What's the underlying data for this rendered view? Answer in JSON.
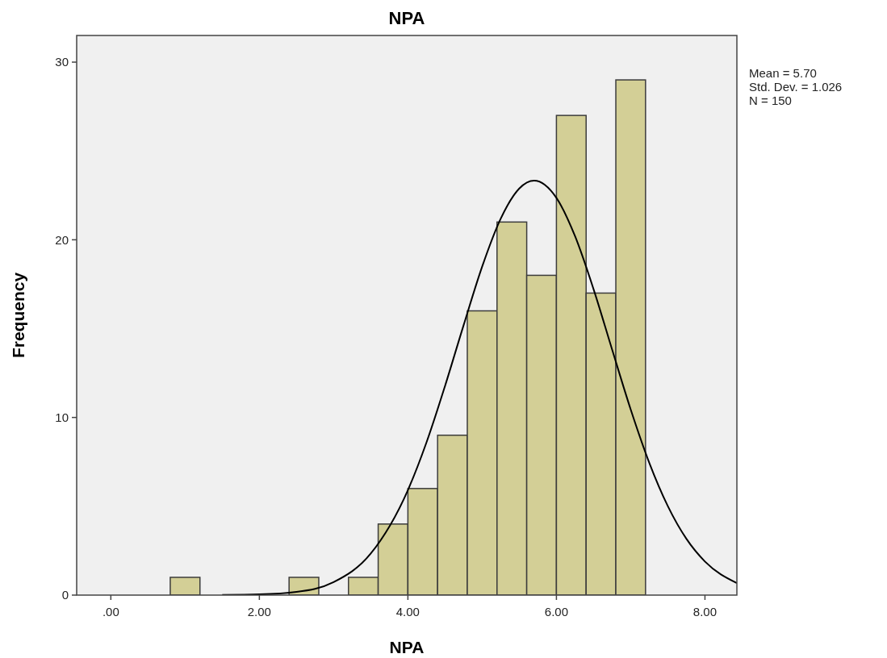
{
  "chart_data": {
    "type": "histogram",
    "title": "NPA",
    "xlabel": "NPA",
    "ylabel": "Frequency",
    "bins": [
      0.8,
      1.2,
      1.6,
      2.0,
      2.4,
      2.8,
      3.2,
      3.6,
      4.0,
      4.4,
      4.8,
      5.2,
      5.6,
      6.0,
      6.4,
      6.8,
      7.2
    ],
    "values": [
      1,
      0,
      0,
      0,
      1,
      0,
      1,
      4,
      6,
      9,
      16,
      21,
      18,
      27,
      17,
      29
    ],
    "color": "#d3cf96",
    "series": [
      {
        "type": "line",
        "color": "#000000",
        "x": [
          1.5,
          2,
          2.5,
          3,
          3.5,
          4,
          4.25,
          4.5,
          4.75,
          5,
          5.25,
          5.5,
          5.7,
          6,
          6.25,
          6.5,
          6.75,
          7,
          7.25,
          7.5,
          7.75,
          8,
          8.43
        ],
        "values": [
          0.01,
          0.04,
          0.18,
          0.73,
          2.34,
          5.91,
          8.59,
          11.77,
          15.19,
          18.49,
          21.19,
          22.89,
          23.33,
          22.36,
          20.21,
          17.22,
          13.82,
          10.45,
          7.45,
          5.01,
          3.17,
          1.89,
          0.68
        ]
      }
    ],
    "xlim": [
      -0.46,
      8.43
    ],
    "ylim": [
      0,
      31.5
    ],
    "xticks": [
      {
        "value": 0,
        "label": ".00"
      },
      {
        "value": 2,
        "label": "2.00"
      },
      {
        "value": 4,
        "label": "4.00"
      },
      {
        "value": 6,
        "label": "6.00"
      },
      {
        "value": 8,
        "label": "8.00"
      }
    ],
    "yticks": [
      0,
      10,
      20,
      30
    ],
    "annotations": [
      "Mean = 5.70",
      "Std. Dev. = 1.026",
      "N = 150"
    ]
  }
}
